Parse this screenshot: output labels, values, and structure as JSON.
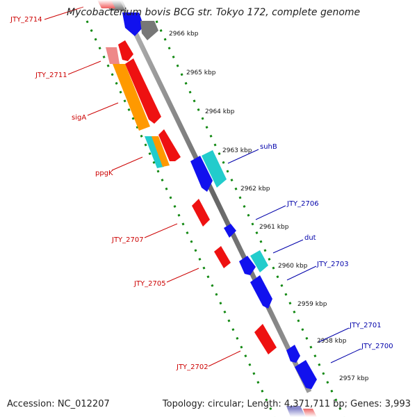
{
  "title": "Mycobacterium bovis BCG str. Tokyo 172, complete genome",
  "accession": "Accession: NC_012207",
  "topology": "Topology: circular; Length: 4,371,711 bp; Genes: 3,993",
  "kbp_ticks": [
    "2966 kbp",
    "2965 kbp",
    "2964 kbp",
    "2963 kbp",
    "2962 kbp",
    "2961 kbp",
    "2960 kbp",
    "2959 kbp",
    "2958 kbp",
    "2957 kbp"
  ],
  "left_gene_labels": [
    "JTY_2714",
    "JTY_2711",
    "sigA",
    "ppgK",
    "JTY_2707",
    "JTY_2705",
    "JTY_2702"
  ],
  "right_gene_labels": [
    "suhB",
    "JTY_2706",
    "dut",
    "JTY_2703",
    "JTY_2701",
    "JTY_2700"
  ],
  "colors": {
    "left_label": "#cc0000",
    "right_label": "#0000aa",
    "forward_gene": "#ee1111",
    "reverse_gene": "#1111ee",
    "rna_gene": "#22cccc",
    "orange_gene": "#ff9900",
    "backbone": "#888888",
    "dotted_track": "#118811"
  }
}
